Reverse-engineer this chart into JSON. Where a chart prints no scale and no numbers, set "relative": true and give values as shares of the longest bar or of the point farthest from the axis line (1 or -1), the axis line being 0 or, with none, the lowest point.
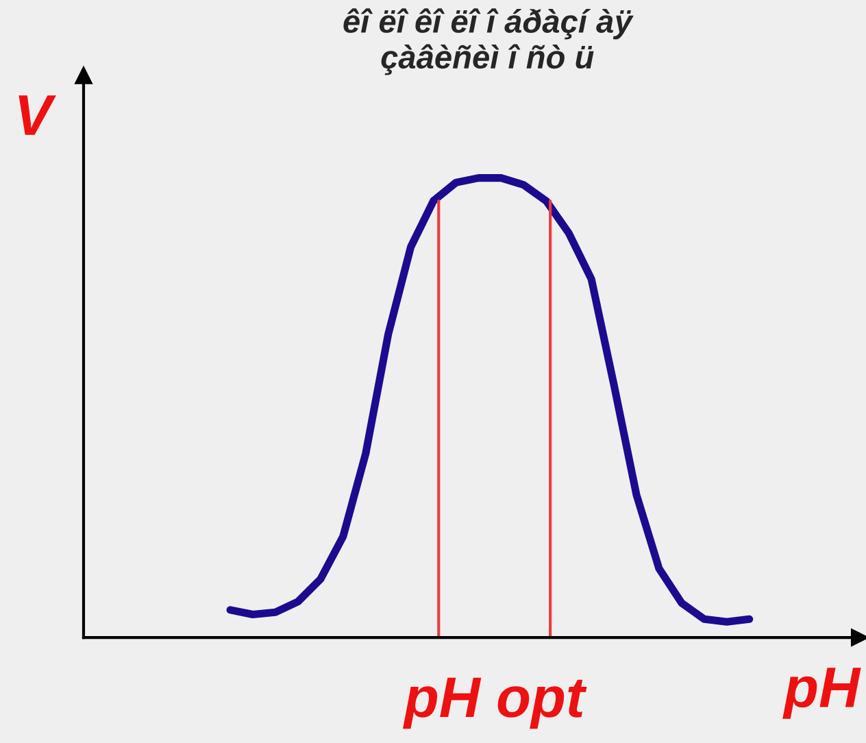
{
  "chart_data": {
    "type": "line",
    "title": "êî ëî êî ëî î áðàçí àÿ\nçàâèñèì î ñò ü",
    "xlabel": "pH",
    "ylabel": "V",
    "relative": true,
    "categories": [
      null,
      null,
      null,
      null,
      null,
      null,
      null,
      null,
      null,
      null,
      null,
      null,
      null,
      null,
      null,
      null,
      null,
      null,
      null,
      null,
      null,
      null,
      null,
      null
    ],
    "series": [
      {
        "color": "#1c0b8f",
        "values": [
          0.06,
          0.05,
          0.055,
          0.078,
          0.127,
          0.22,
          0.4,
          0.66,
          0.85,
          0.95,
          0.99,
          1.0,
          1.0,
          0.985,
          0.95,
          0.88,
          0.78,
          0.55,
          0.31,
          0.15,
          0.075,
          0.04,
          0.034,
          0.04
        ]
      }
    ],
    "annotations": [
      "pH opt"
    ]
  }
}
